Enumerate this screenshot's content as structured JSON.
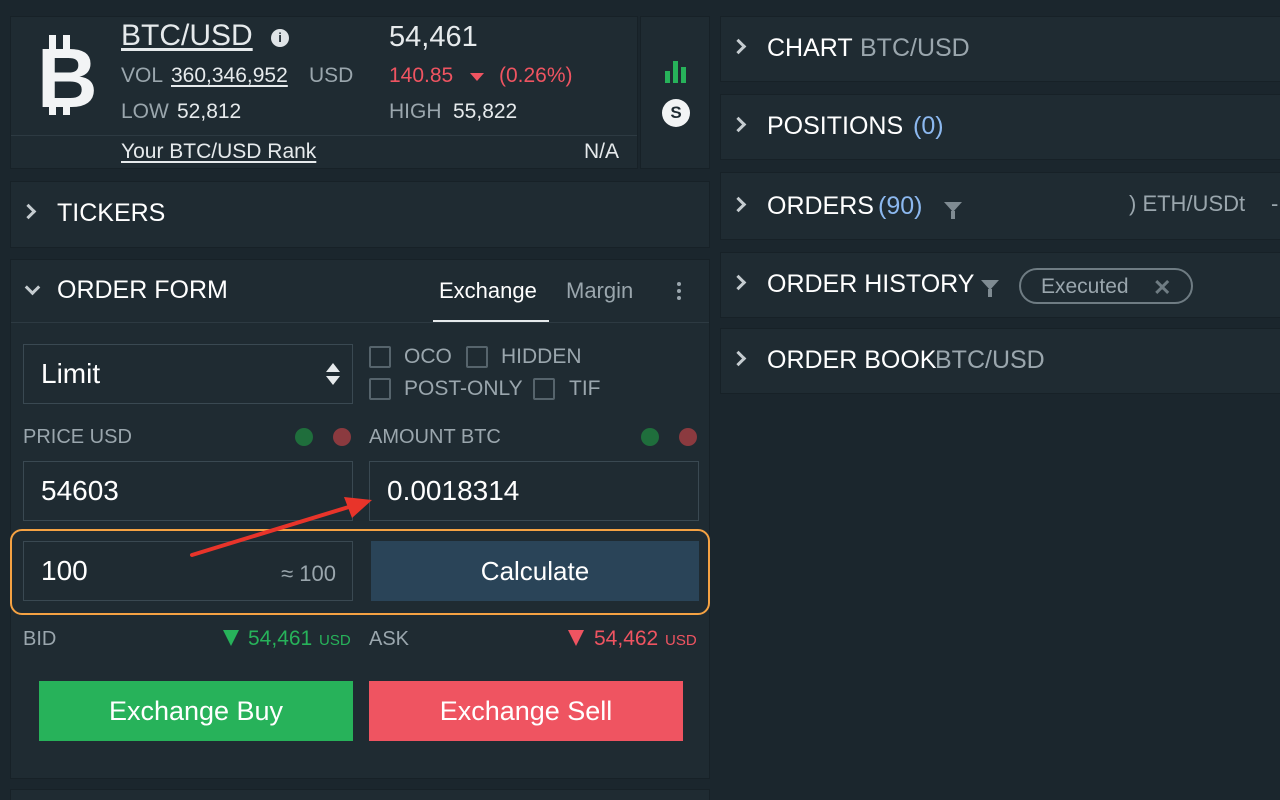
{
  "ticker": {
    "pair": "BTC/USD",
    "vol_label": "VOL",
    "vol_value": "360,346,952",
    "vol_unit": "USD",
    "low_label": "LOW",
    "low_value": "52,812",
    "price": "54,461",
    "change": "140.85",
    "change_pct": "(0.26%)",
    "high_label": "HIGH",
    "high_value": "55,822",
    "rank_label": "Your BTC/USD Rank",
    "rank_value": "N/A"
  },
  "tickers_panel": {
    "title": "TICKERS"
  },
  "order_form": {
    "title": "ORDER FORM",
    "tab_exchange": "Exchange",
    "tab_margin": "Margin",
    "order_type": "Limit",
    "opt_oco": "OCO",
    "opt_hidden": "HIDDEN",
    "opt_post_only": "POST-ONLY",
    "opt_tif": "TIF",
    "price_label": "PRICE USD",
    "amount_label": "AMOUNT BTC",
    "price_value": "54603",
    "amount_value": "0.0018314",
    "total_value": "100",
    "total_approx": "≈ 100",
    "calculate": "Calculate",
    "bid_label": "BID",
    "bid_value": "54,461",
    "bid_unit": "USD",
    "ask_label": "ASK",
    "ask_value": "54,462",
    "ask_unit": "USD",
    "buy_label": "Exchange Buy",
    "sell_label": "Exchange Sell"
  },
  "right_panels": {
    "chart_title": "CHART",
    "chart_pair": "BTC/USD",
    "positions_title": "POSITIONS",
    "positions_count": "(0)",
    "orders_title": "ORDERS",
    "orders_count": "(90)",
    "orders_ticker_snip": ") ETH/USDt",
    "orders_ticker_tail": "-",
    "history_title": "ORDER HISTORY",
    "history_chip": "Executed",
    "book_title": "ORDER BOOK",
    "book_pair": "BTC/USD"
  },
  "colors": {
    "green": "#27b25a",
    "red": "#ef5461",
    "accent_blue": "#8cb8ef",
    "highlight_orange": "#f5a243",
    "annotation_arrow": "#e8342a"
  }
}
